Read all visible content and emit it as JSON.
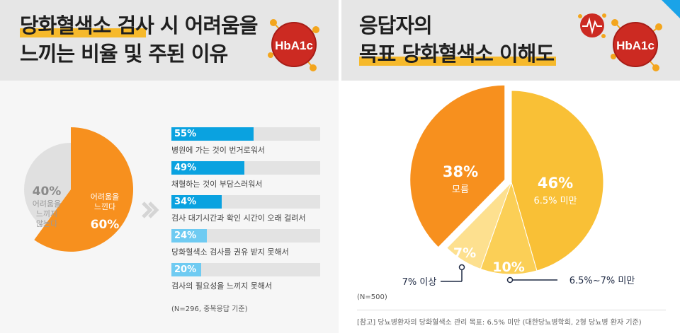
{
  "left": {
    "title": {
      "line1": "당화혈색소 검사 시 어려움을",
      "line2": "느끼는 비율 및 주된 이유"
    },
    "badge": "HbA1c",
    "chart_data": [
      {
        "type": "pie",
        "slices": [
          {
            "label_lines": [
              "어려움을",
              "느낀다"
            ],
            "value": 60,
            "value_label": "60%",
            "color": "#f7901e"
          },
          {
            "label_lines": [
              "어려움을",
              "느끼지",
              "않는다"
            ],
            "value": 40,
            "value_label": "40%",
            "color": "#e0e0e0"
          }
        ]
      },
      {
        "type": "bar",
        "orientation": "horizontal",
        "categories": [
          "병원에 가는 것이 번거로워서",
          "채혈하는 것이 부담스러워서",
          "검사 대기시간과 확인 시간이 오래 걸려서",
          "당화혈색소 검사를 권유 받지 못해서",
          "검사의 필요성을 느끼지 못해서"
        ],
        "values": [
          55,
          49,
          34,
          24,
          20
        ],
        "value_labels": [
          "55%",
          "49%",
          "34%",
          "24%",
          "20%"
        ],
        "colors": [
          "#0aa2e0",
          "#0aa2e0",
          "#0aa2e0",
          "#6fcbf2",
          "#6fcbf2"
        ],
        "xlim": [
          0,
          100
        ]
      }
    ],
    "note": "(N=296, 중복응답 기준)"
  },
  "right": {
    "title": {
      "line1": "응답자의",
      "line2": "목표 당화혈색소 이해도"
    },
    "badge": "HbA1c",
    "chart_data": {
      "type": "pie",
      "slices": [
        {
          "label": "6.5% 미만",
          "value": 46,
          "value_label": "46%",
          "color": "#f9c036"
        },
        {
          "label": "6.5%~7% 미만",
          "value": 10,
          "value_label": "10%",
          "color": "#fbcf56"
        },
        {
          "label": "7% 이상",
          "value": 7,
          "value_label": "7%",
          "color": "#fde08f"
        },
        {
          "label": "모름",
          "value": 38,
          "value_label": "38%",
          "color": "#f7901e"
        }
      ]
    },
    "n_note": "(N=500)",
    "footnote": "[참고] 당뇨병환자의 당화혈색소 관리 목표: 6.5% 미만 (대한당뇨병학회, 2형 당뇨병 환자 기준)"
  }
}
